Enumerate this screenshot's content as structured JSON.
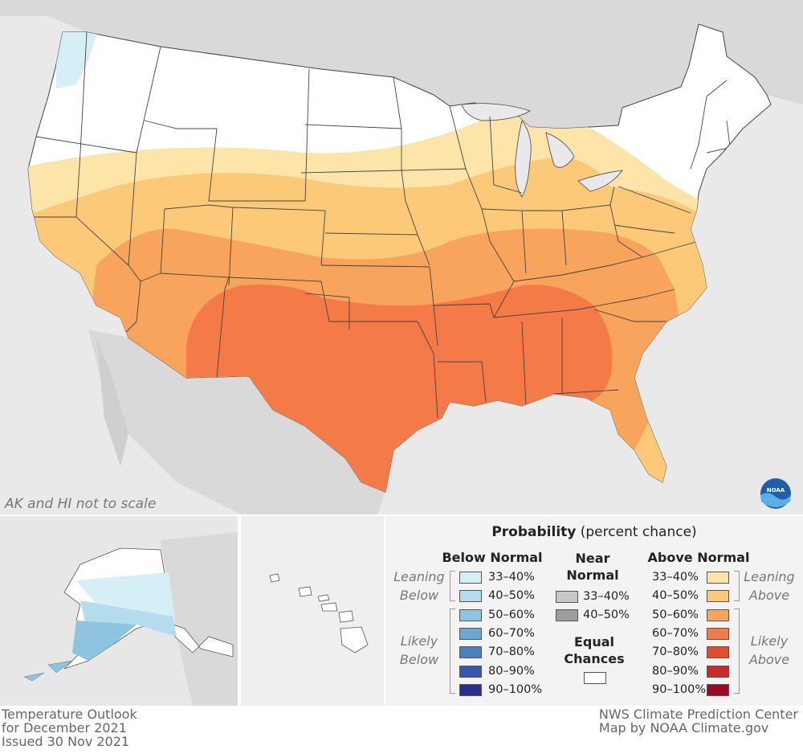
{
  "note": "AK and HI not to scale",
  "footer": {
    "left": [
      "Temperature Outlook",
      "for December 2021",
      "Issued 30 Nov 2021"
    ],
    "right": [
      "NWS Climate Prediction Center",
      "Map by NOAA Climate.gov"
    ]
  },
  "logo_text": "NOAA",
  "legend": {
    "title_bold": "Probability",
    "title_rest": " (percent chance)",
    "below": {
      "title": "Below Normal",
      "leaning": [
        "Leaning",
        "Below"
      ],
      "likely": [
        "Likely",
        "Below"
      ],
      "items": [
        {
          "label": "33–40%",
          "color": "#d6eef6"
        },
        {
          "label": "40–50%",
          "color": "#b4dcec"
        },
        {
          "label": "50–60%",
          "color": "#8ec4df"
        },
        {
          "label": "60–70%",
          "color": "#6ca6d3"
        },
        {
          "label": "70–80%",
          "color": "#4a7fc1"
        },
        {
          "label": "80–90%",
          "color": "#3557ad"
        },
        {
          "label": "90–100%",
          "color": "#28308f"
        }
      ]
    },
    "near": {
      "title": [
        "Near",
        "Normal"
      ],
      "items": [
        {
          "label": "33–40%",
          "color": "#c8c8c8"
        },
        {
          "label": "40–50%",
          "color": "#9e9e9e"
        }
      ],
      "equal_title": [
        "Equal",
        "Chances"
      ],
      "equal_color": "#ffffff"
    },
    "above": {
      "title": "Above Normal",
      "leaning": [
        "Leaning",
        "Above"
      ],
      "likely": [
        "Likely",
        "Above"
      ],
      "items": [
        {
          "label": "33–40%",
          "color": "#fde5a9"
        },
        {
          "label": "40–50%",
          "color": "#fcc979"
        },
        {
          "label": "50–60%",
          "color": "#f9a45c"
        },
        {
          "label": "60–70%",
          "color": "#f47a48"
        },
        {
          "label": "70–80%",
          "color": "#e44c32"
        },
        {
          "label": "80–90%",
          "color": "#c82a2a"
        },
        {
          "label": "90–100%",
          "color": "#9b0a25"
        }
      ]
    }
  },
  "map": {
    "colors": {
      "ocean": "#e9e9e9",
      "land_other": "#d8d8d8",
      "equal_chances": "#ffffff",
      "state_lines": "#444444"
    }
  }
}
